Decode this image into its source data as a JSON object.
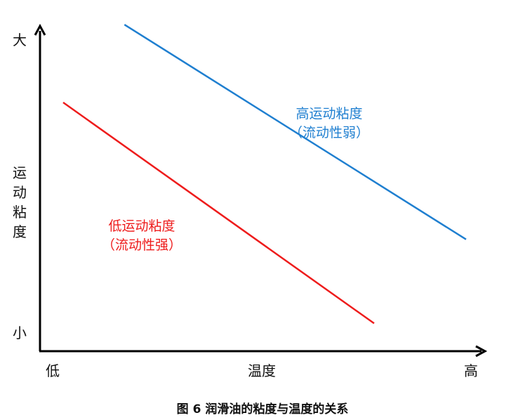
{
  "chart_data": {
    "type": "line",
    "caption": "图 6  润滑油的粘度与温度的关系",
    "ylabel": "运动粘度",
    "xlabel": "温度",
    "y_ticks": {
      "max": "大",
      "min": "小"
    },
    "x_ticks": {
      "min": "低",
      "max": "高"
    },
    "xlim": [
      0,
      10
    ],
    "ylim": [
      0,
      10
    ],
    "series": [
      {
        "name_lines": [
          "高运动粘度",
          "（流动性弱）"
        ],
        "color": "#1f7fd0",
        "x": [
          1.8,
          9.6
        ],
        "y": [
          10.2,
          3.3
        ]
      },
      {
        "name_lines": [
          "低运动粘度",
          "（流动性强）"
        ],
        "color": "#ee1c1c",
        "x": [
          0.4,
          7.5
        ],
        "y": [
          7.7,
          0.6
        ]
      }
    ]
  }
}
